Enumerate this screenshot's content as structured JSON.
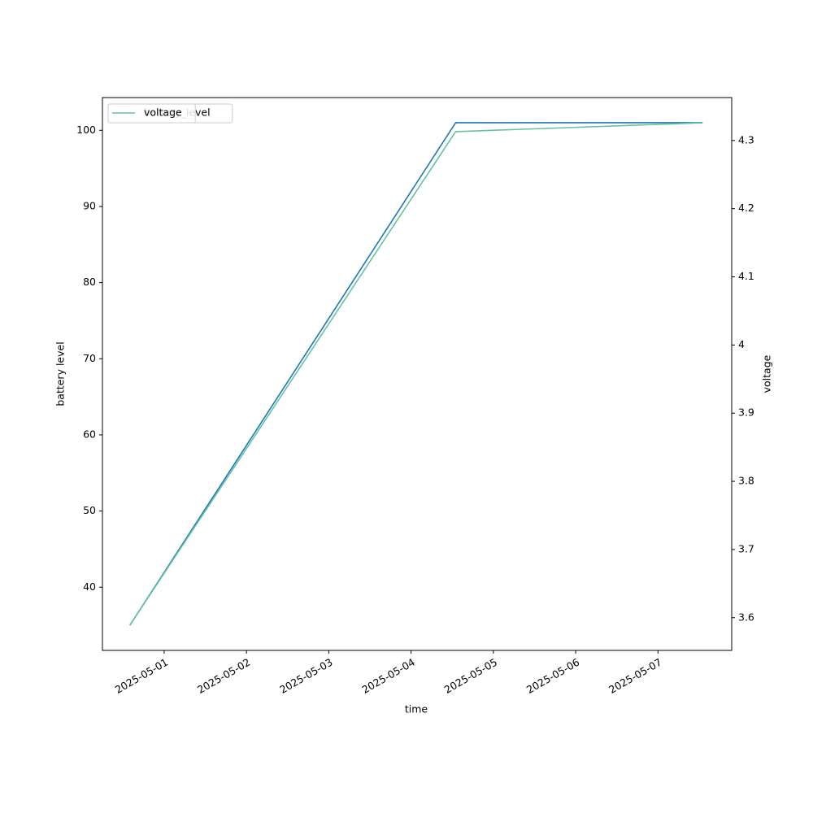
{
  "chart_data": {
    "type": "line",
    "x": [
      "2025-04-30T14:00",
      "2025-05-04T13:00",
      "2025-05-07T13:00"
    ],
    "xlim": [
      "2025-04-30T06:00",
      "2025-05-07T21:30"
    ],
    "xticks": [
      "2025-05-01",
      "2025-05-02",
      "2025-05-03",
      "2025-05-04",
      "2025-05-05",
      "2025-05-06",
      "2025-05-07"
    ],
    "xlabel": "time",
    "ylabel": "battery level",
    "y2label": "voltage",
    "ylim": [
      31.7,
      104.3
    ],
    "yticks": [
      40,
      50,
      60,
      70,
      80,
      90,
      100
    ],
    "y2lim": [
      3.552,
      4.363
    ],
    "y2ticks": [
      3.6,
      3.7,
      3.8,
      3.9,
      4.0,
      4.1,
      4.2,
      4.3
    ],
    "legend": "upper left",
    "grid": false,
    "series": [
      {
        "name": "battery_level",
        "color": "#1f77b4",
        "values": [
          35,
          101,
          101
        ]
      },
      {
        "name": "voltage",
        "color": "#66c2a5",
        "values": [
          3.589,
          4.313,
          4.326
        ],
        "axis": "y2"
      }
    ]
  }
}
